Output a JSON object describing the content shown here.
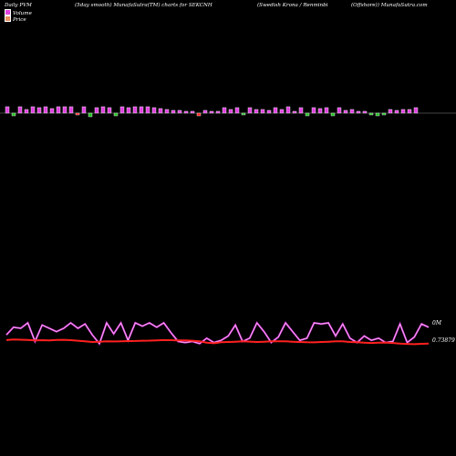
{
  "header": {
    "title_left": "Daily PVM",
    "title_mid": "(5day smooth) MunafaSutra(TM) charts for SEKCNH",
    "title_right": "(Swedish Krona  / Renminbi",
    "title_far": "(Offshore)) MunafaSutra.com"
  },
  "legend": {
    "volume_label": "Volume",
    "price_label": "Price",
    "volume_color": "#e040e0",
    "price_color": "#e89060"
  },
  "chart_data": {
    "type": "bar",
    "volume": {
      "name": "Volume",
      "values": [
        7,
        -3,
        7,
        4,
        7,
        6,
        7,
        5,
        7,
        7,
        7,
        -2,
        7,
        -4,
        6,
        7,
        6,
        -3,
        7,
        6,
        7,
        7,
        7,
        6,
        5,
        4,
        3,
        3,
        2,
        2,
        -3,
        3,
        2,
        2,
        6,
        4,
        6,
        -2,
        6,
        4,
        4,
        3,
        6,
        4,
        7,
        2,
        6,
        -3,
        6,
        5,
        6,
        -3,
        6,
        3,
        4,
        2,
        2,
        -2,
        -3,
        -2,
        4,
        3,
        4,
        4,
        6
      ],
      "colors": [
        "m",
        "g",
        "m",
        "m",
        "m",
        "m",
        "m",
        "m",
        "m",
        "m",
        "m",
        "r",
        "m",
        "g",
        "m",
        "m",
        "m",
        "g",
        "m",
        "m",
        "m",
        "m",
        "m",
        "m",
        "m",
        "m",
        "m",
        "m",
        "m",
        "m",
        "r",
        "m",
        "m",
        "m",
        "m",
        "m",
        "m",
        "g",
        "m",
        "m",
        "m",
        "m",
        "m",
        "m",
        "m",
        "m",
        "m",
        "g",
        "m",
        "m",
        "m",
        "g",
        "m",
        "m",
        "m",
        "m",
        "m",
        "g",
        "g",
        "g",
        "m",
        "m",
        "m",
        "m",
        "m"
      ]
    },
    "pvm": {
      "name": "",
      "color": "#e040e0",
      "values": [
        0.45,
        0.8,
        0.75,
        1.0,
        0.15,
        0.9,
        0.75,
        0.6,
        0.75,
        1.0,
        0.75,
        0.95,
        0.45,
        0.05,
        1.0,
        0.5,
        1.0,
        0.2,
        1.0,
        0.85,
        1.0,
        0.8,
        1.0,
        0.55,
        0.15,
        0.1,
        0.15,
        0.05,
        0.3,
        0.1,
        0.2,
        0.4,
        0.9,
        0.15,
        0.3,
        1.0,
        0.6,
        0.1,
        0.35,
        1.0,
        0.6,
        0.2,
        0.3,
        1.0,
        0.95,
        1.0,
        0.4,
        0.95,
        0.3,
        0.1,
        0.4,
        0.2,
        0.3,
        0.1,
        0.15,
        0.95,
        0.1,
        0.35,
        0.95,
        0.8
      ]
    },
    "price": {
      "name": "",
      "color": "#ff2020",
      "values": [
        0.65,
        0.7,
        0.68,
        0.66,
        0.62,
        0.64,
        0.63,
        0.66,
        0.67,
        0.64,
        0.6,
        0.55,
        0.5,
        0.52,
        0.55,
        0.54,
        0.56,
        0.57,
        0.58,
        0.6,
        0.61,
        0.63,
        0.65,
        0.64,
        0.62,
        0.62,
        0.6,
        0.55,
        0.45,
        0.4,
        0.48,
        0.5,
        0.52,
        0.55,
        0.53,
        0.5,
        0.52,
        0.55,
        0.56,
        0.55,
        0.52,
        0.5,
        0.48,
        0.47,
        0.5,
        0.52,
        0.55,
        0.56,
        0.5,
        0.48,
        0.45,
        0.42,
        0.44,
        0.46,
        0.42,
        0.38,
        0.35,
        0.33,
        0.36,
        0.37
      ]
    },
    "price_line_label": "0.73879",
    "pvm_line_label": "0M",
    "grid": false
  }
}
